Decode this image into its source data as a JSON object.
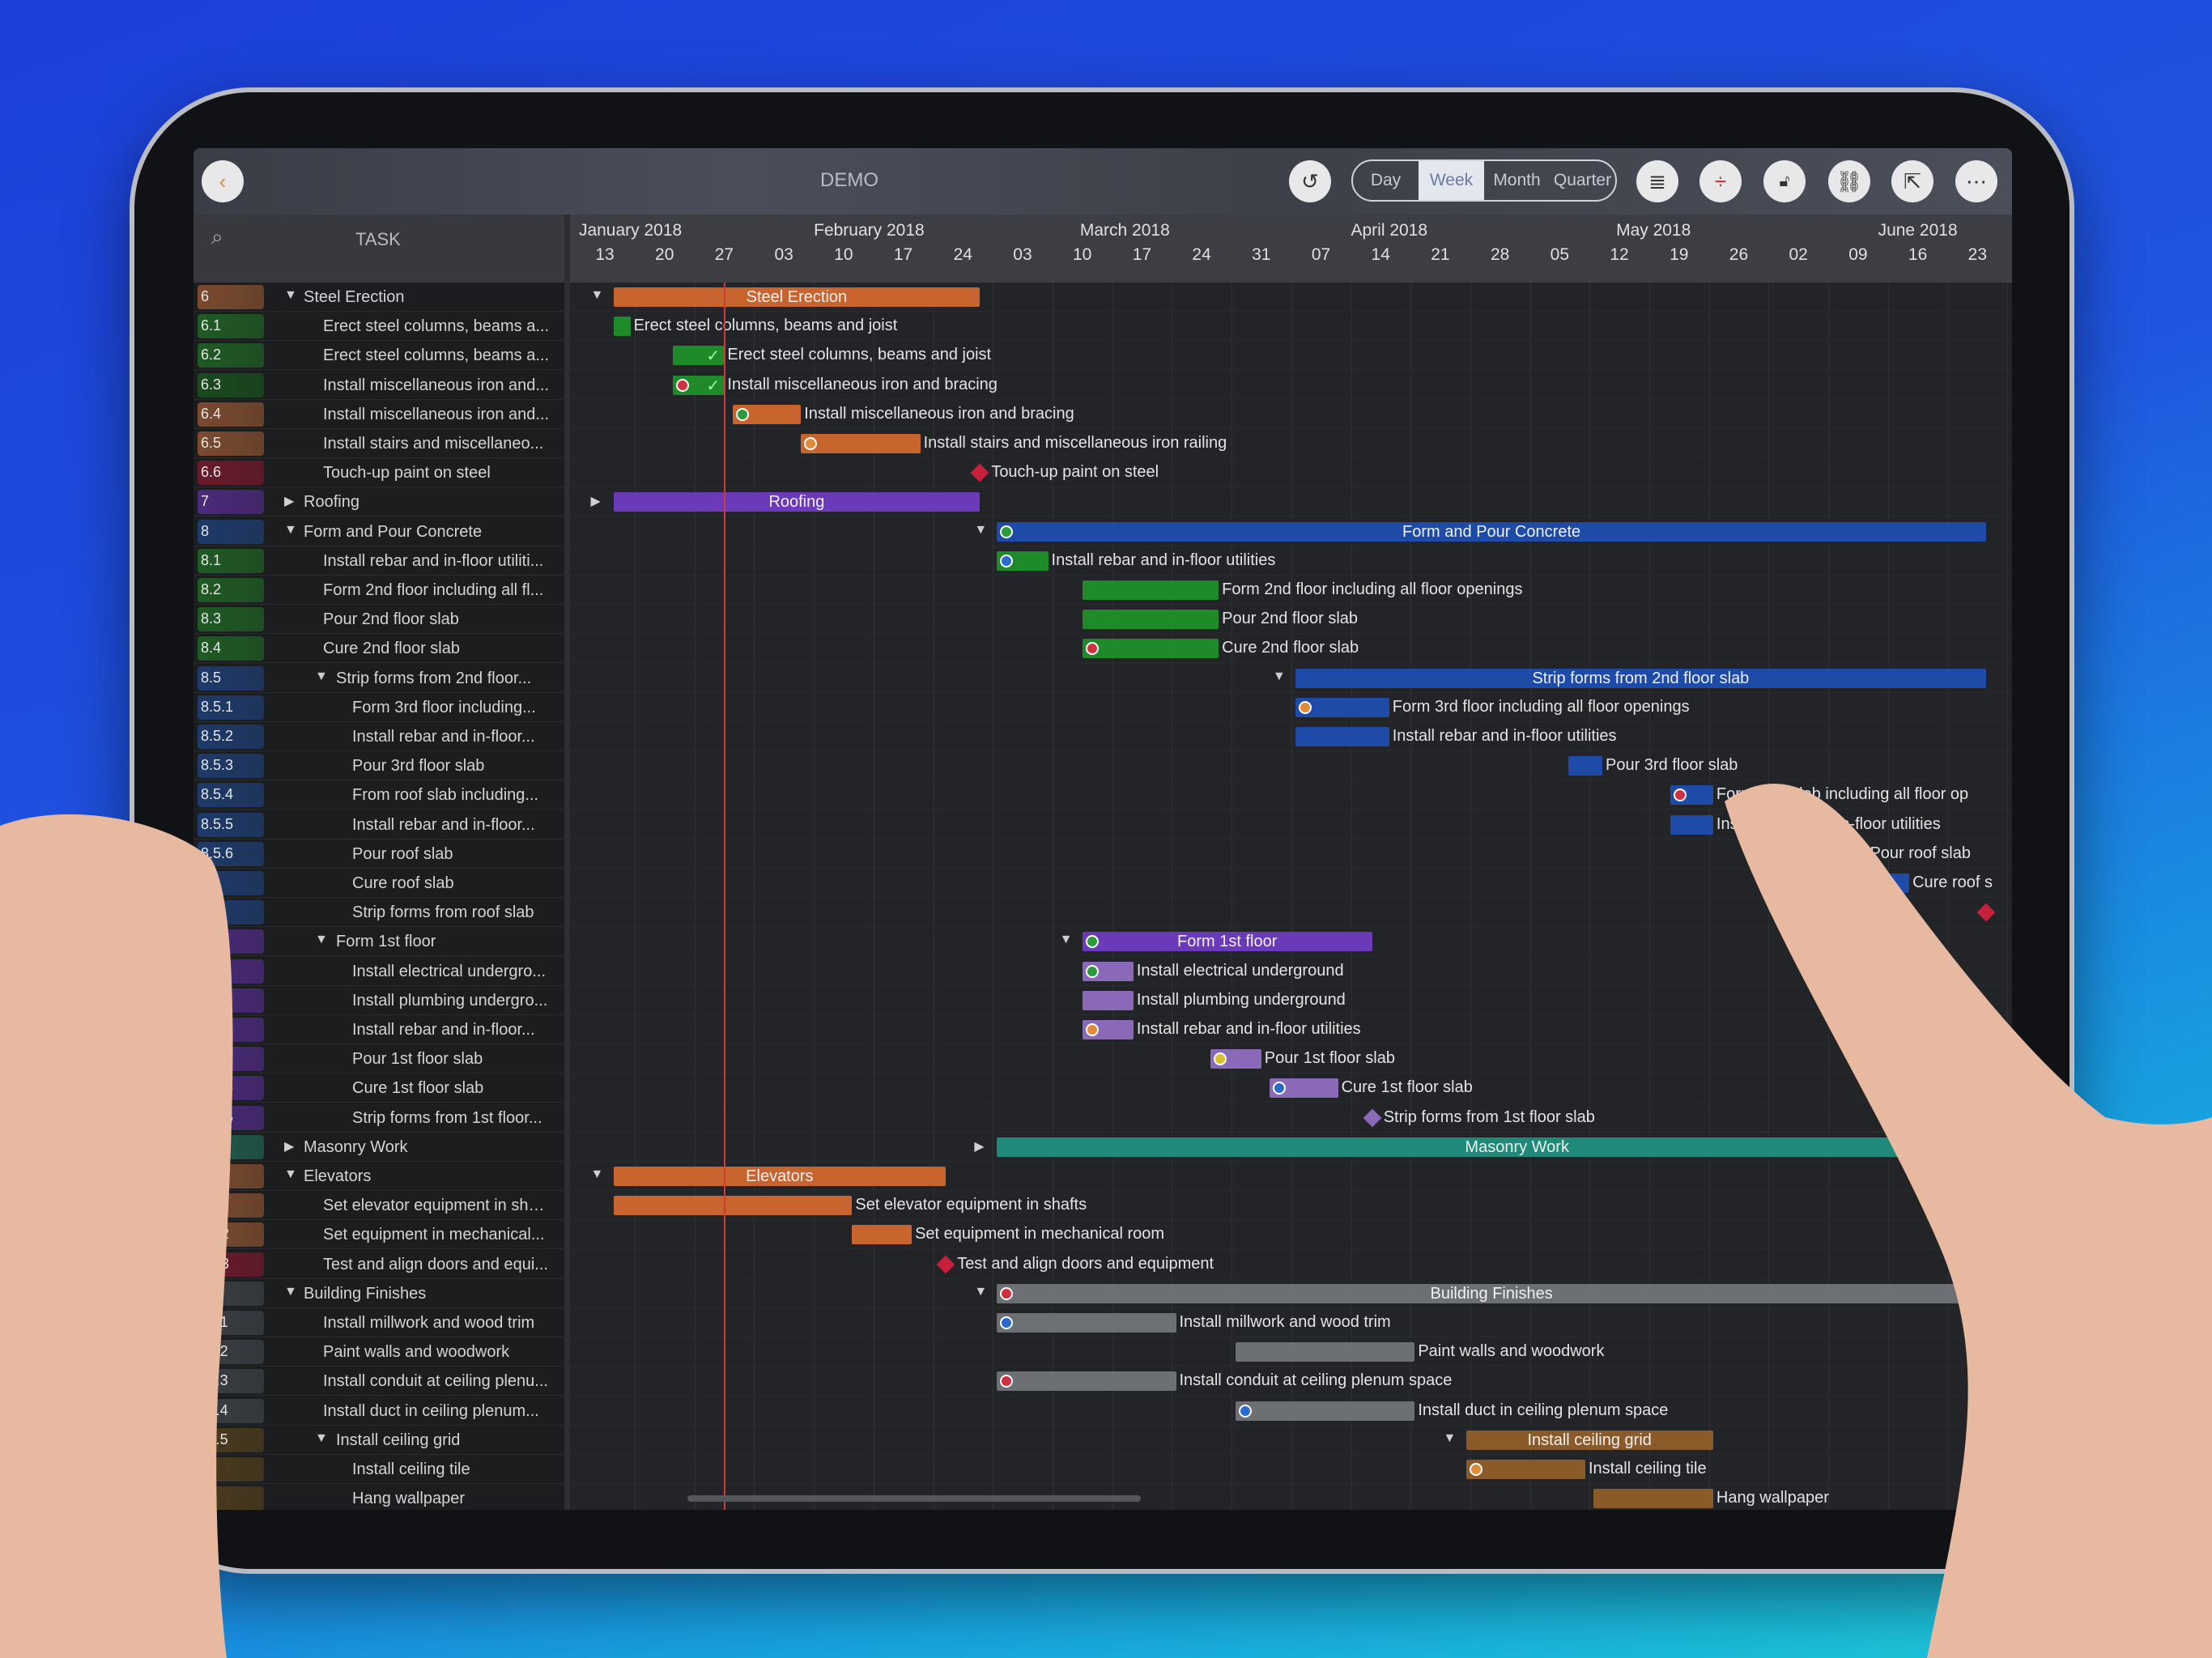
{
  "toolbar": {
    "title": "DEMO",
    "views": [
      "Day",
      "Week",
      "Month",
      "Quarter"
    ],
    "active_view": "Week",
    "icons": [
      "back-icon",
      "undo-icon",
      "list-indent-icon",
      "row-height-icon",
      "lock-icon",
      "link-icon",
      "export-icon",
      "more-icon"
    ]
  },
  "task_header": {
    "label": "TASK"
  },
  "timeline": {
    "months": [
      "January 2018",
      "February 2018",
      "March 2018",
      "April 2018",
      "May 2018",
      "June 2018"
    ],
    "weeks": [
      "13",
      "20",
      "27",
      "03",
      "10",
      "17",
      "24",
      "03",
      "10",
      "17",
      "24",
      "31",
      "07",
      "14",
      "21",
      "28",
      "05",
      "12",
      "19",
      "26",
      "02",
      "09",
      "16",
      "23"
    ],
    "first_week": "2018-01-13",
    "today": "2018-01-27"
  },
  "colors": {
    "orange": "#c8642e",
    "green": "#1f8a2a",
    "crimson": "#c8203c",
    "purple": "#6a3ab8",
    "blue": "#1e4aa8",
    "teal": "#1f8a7a",
    "gray": "#6c6f74",
    "brown": "#8a5a28",
    "lavender": "#8a6ab8"
  },
  "tasks": [
    {
      "id": "6",
      "name": "Steel Erection",
      "level": 0,
      "group": true,
      "open": true,
      "chip": "#7a4a2e",
      "color": "orange",
      "start": "2018-01-14",
      "end": "2018-02-26",
      "bar_label": "Steel Erection"
    },
    {
      "id": "6.1",
      "name": "Erect steel columns, beams a...",
      "level": 1,
      "chip": "#1f5a24",
      "color": "green",
      "start": "2018-01-14",
      "end": "2018-01-16",
      "bar_label": "Erect steel columns, beams and joist"
    },
    {
      "id": "6.2",
      "name": "Erect steel columns, beams a...",
      "level": 1,
      "chip": "#1f5a24",
      "color": "green",
      "start": "2018-01-21",
      "end": "2018-01-27",
      "bar_label": "Erect steel columns, beams and joist",
      "done": true
    },
    {
      "id": "6.3",
      "name": "Install miscellaneous iron and...",
      "level": 1,
      "chip": "#1a4a1e",
      "color": "green",
      "start": "2018-01-21",
      "end": "2018-01-27",
      "bar_label": "Install miscellaneous iron and bracing",
      "done": true,
      "icon": "crimson"
    },
    {
      "id": "6.4",
      "name": "Install miscellaneous iron and...",
      "level": 1,
      "chip": "#7a4a2e",
      "color": "orange",
      "start": "2018-01-28",
      "end": "2018-02-05",
      "bar_label": "Install miscellaneous iron and bracing",
      "icon": "green"
    },
    {
      "id": "6.5",
      "name": "Install stairs and miscellaneo...",
      "level": 1,
      "chip": "#7a4a2e",
      "color": "orange",
      "start": "2018-02-05",
      "end": "2018-02-19",
      "bar_label": "Install stairs and miscellaneous iron railing",
      "icon": "orange"
    },
    {
      "id": "6.6",
      "name": "Touch-up paint on steel",
      "level": 1,
      "chip": "#6a1a2a",
      "milestone": true,
      "color": "crimson",
      "start": "2018-02-26",
      "end": "2018-02-26",
      "bar_label": "Touch-up paint on steel"
    },
    {
      "id": "7",
      "name": "Roofing",
      "level": 0,
      "group": true,
      "open": false,
      "chip": "#4a2a7a",
      "color": "purple",
      "start": "2018-01-14",
      "end": "2018-02-26",
      "bar_label": "Roofing"
    },
    {
      "id": "8",
      "name": "Form and Pour Concrete",
      "level": 0,
      "group": true,
      "open": true,
      "chip": "#1e3a6a",
      "color": "blue",
      "start": "2018-02-28",
      "end": "2018-06-24",
      "bar_label": "Form and Pour Concrete",
      "icon": "green"
    },
    {
      "id": "8.1",
      "name": "Install rebar and in-floor utiliti...",
      "level": 1,
      "chip": "#1f5a24",
      "color": "green",
      "start": "2018-02-28",
      "end": "2018-03-06",
      "bar_label": "Install rebar and in-floor utilities",
      "icon": "blue"
    },
    {
      "id": "8.2",
      "name": "Form 2nd floor including all fl...",
      "level": 1,
      "chip": "#1f5a24",
      "color": "green",
      "start": "2018-03-10",
      "end": "2018-03-26",
      "bar_label": "Form 2nd floor including all floor openings"
    },
    {
      "id": "8.3",
      "name": "Pour 2nd floor slab",
      "level": 1,
      "chip": "#1f5a24",
      "color": "green",
      "start": "2018-03-10",
      "end": "2018-03-26",
      "bar_label": "Pour 2nd floor slab"
    },
    {
      "id": "8.4",
      "name": "Cure 2nd floor slab",
      "level": 1,
      "chip": "#1f5a24",
      "color": "green",
      "start": "2018-03-10",
      "end": "2018-03-26",
      "bar_label": "Cure 2nd floor slab",
      "icon": "crimson"
    },
    {
      "id": "8.5",
      "name": "Strip forms from 2nd floor...",
      "level": 1,
      "group": true,
      "open": true,
      "chip": "#1e3a6a",
      "color": "blue",
      "start": "2018-04-04",
      "end": "2018-06-24",
      "bar_label": "Strip forms from 2nd floor slab"
    },
    {
      "id": "8.5.1",
      "name": "Form 3rd floor including...",
      "level": 2,
      "chip": "#1e3a6a",
      "color": "blue",
      "start": "2018-04-04",
      "end": "2018-04-15",
      "bar_label": "Form 3rd floor including all floor openings",
      "icon": "orange"
    },
    {
      "id": "8.5.2",
      "name": "Install rebar and in-floor...",
      "level": 2,
      "chip": "#1e3a6a",
      "color": "blue",
      "start": "2018-04-04",
      "end": "2018-04-15",
      "bar_label": "Install rebar and in-floor utilities"
    },
    {
      "id": "8.5.3",
      "name": "Pour 3rd floor slab",
      "level": 2,
      "chip": "#1e3a6a",
      "color": "blue",
      "start": "2018-05-06",
      "end": "2018-05-10",
      "bar_label": "Pour 3rd floor slab"
    },
    {
      "id": "8.5.4",
      "name": "From roof slab including...",
      "level": 2,
      "chip": "#1e3a6a",
      "color": "blue",
      "start": "2018-05-18",
      "end": "2018-05-23",
      "bar_label": "Form roof slab including all floor op",
      "icon": "crimson"
    },
    {
      "id": "8.5.5",
      "name": "Install rebar and in-floor...",
      "level": 2,
      "chip": "#1e3a6a",
      "color": "blue",
      "start": "2018-05-18",
      "end": "2018-05-23",
      "bar_label": "Install rebar and in-floor utilities"
    },
    {
      "id": "8.5.6",
      "name": "Pour roof slab",
      "level": 2,
      "chip": "#1e3a6a",
      "color": "blue",
      "start": "2018-06-01",
      "end": "2018-06-10",
      "bar_label": "Pour roof slab"
    },
    {
      "id": "",
      "name": "Cure roof slab",
      "level": 2,
      "chip": "#1e3a6a",
      "color": "blue",
      "start": "2018-06-11",
      "end": "2018-06-15",
      "bar_label": "Cure roof s"
    },
    {
      "id": "",
      "name": "Strip forms from roof slab",
      "level": 2,
      "chip": "#1e3a6a",
      "milestone": true,
      "color": "crimson",
      "start": "2018-06-24",
      "end": "2018-06-24",
      "bar_label": ""
    },
    {
      "id": "",
      "name": "Form 1st floor",
      "level": 1,
      "group": true,
      "open": true,
      "chip": "#4a2a7a",
      "color": "purple",
      "start": "2018-03-10",
      "end": "2018-04-13",
      "bar_label": "Form 1st floor",
      "icon": "green"
    },
    {
      "id": "",
      "name": "Install electrical undergro...",
      "level": 2,
      "chip": "#4a2a7a",
      "color": "lavender",
      "start": "2018-03-10",
      "end": "2018-03-16",
      "bar_label": "Install electrical underground",
      "icon": "green"
    },
    {
      "id": "",
      "name": "Install plumbing undergro...",
      "level": 2,
      "chip": "#4a2a7a",
      "color": "lavender",
      "start": "2018-03-10",
      "end": "2018-03-16",
      "bar_label": "Install plumbing underground"
    },
    {
      "id": "",
      "name": "Install rebar and in-floor...",
      "level": 2,
      "chip": "#4a2a7a",
      "color": "lavender",
      "start": "2018-03-10",
      "end": "2018-03-16",
      "bar_label": "Install rebar and in-floor utilities",
      "icon": "orange"
    },
    {
      "id": "",
      "name": "Pour 1st floor slab",
      "level": 2,
      "chip": "#4a2a7a",
      "color": "lavender",
      "start": "2018-03-25",
      "end": "2018-03-31",
      "bar_label": "Pour 1st floor slab",
      "icon": "yellow"
    },
    {
      "id": "8.6.5",
      "name": "Cure 1st floor slab",
      "level": 2,
      "chip": "#4a2a7a",
      "color": "lavender",
      "start": "2018-04-01",
      "end": "2018-04-09",
      "bar_label": "Cure 1st floor slab",
      "icon": "blue"
    },
    {
      "id": "8.6.6",
      "name": "Strip forms from 1st floor...",
      "level": 2,
      "chip": "#4a2a7a",
      "milestone": true,
      "color": "lavender",
      "start": "2018-04-13",
      "end": "2018-04-13",
      "bar_label": "Strip forms from 1st floor slab"
    },
    {
      "id": "9",
      "name": "Masonry Work",
      "level": 0,
      "group": true,
      "open": false,
      "chip": "#1f5a4a",
      "color": "teal",
      "start": "2018-02-28",
      "end": "2018-06-30",
      "bar_label": "Masonry Work"
    },
    {
      "id": "10",
      "name": "Elevators",
      "level": 0,
      "group": true,
      "open": true,
      "chip": "#7a4a2e",
      "color": "orange",
      "start": "2018-01-14",
      "end": "2018-02-22",
      "bar_label": "Elevators"
    },
    {
      "id": "10.1",
      "name": "Set elevator equipment in sha...",
      "level": 1,
      "chip": "#7a4a2e",
      "color": "orange",
      "start": "2018-01-14",
      "end": "2018-02-11",
      "bar_label": "Set elevator equipment in shafts"
    },
    {
      "id": "10.2",
      "name": "Set equipment in mechanical...",
      "level": 1,
      "chip": "#7a4a2e",
      "color": "orange",
      "start": "2018-02-11",
      "end": "2018-02-18",
      "bar_label": "Set equipment in mechanical room"
    },
    {
      "id": "10.3",
      "name": "Test and align doors and equi...",
      "level": 1,
      "chip": "#6a1a2a",
      "milestone": true,
      "color": "crimson",
      "start": "2018-02-22",
      "end": "2018-02-22",
      "bar_label": "Test and align doors and equipment"
    },
    {
      "id": "11",
      "name": "Building Finishes",
      "level": 0,
      "group": true,
      "open": true,
      "chip": "#3a3d42",
      "color": "gray",
      "start": "2018-02-28",
      "end": "2018-06-24",
      "bar_label": "Building Finishes",
      "icon": "crimson"
    },
    {
      "id": "11.1",
      "name": "Install millwork and wood trim",
      "level": 1,
      "chip": "#3a3d42",
      "color": "gray",
      "start": "2018-02-28",
      "end": "2018-03-21",
      "bar_label": "Install millwork and wood trim",
      "icon": "blue"
    },
    {
      "id": "11.2",
      "name": "Paint walls and woodwork",
      "level": 1,
      "chip": "#3a3d42",
      "color": "gray",
      "start": "2018-03-28",
      "end": "2018-04-18",
      "bar_label": "Paint walls and woodwork"
    },
    {
      "id": "11.3",
      "name": "Install conduit at ceiling plenu...",
      "level": 1,
      "chip": "#3a3d42",
      "color": "gray",
      "start": "2018-02-28",
      "end": "2018-03-21",
      "bar_label": "Install conduit at ceiling plenum space",
      "icon": "crimson"
    },
    {
      "id": "11.4",
      "name": "Install duct in ceiling plenum...",
      "level": 1,
      "chip": "#3a3d42",
      "color": "gray",
      "start": "2018-03-28",
      "end": "2018-04-18",
      "bar_label": "Install duct in ceiling plenum space",
      "icon": "blue"
    },
    {
      "id": "11.5",
      "name": "Install ceiling grid",
      "level": 1,
      "group": true,
      "open": true,
      "chip": "#4a3a1e",
      "color": "brown",
      "start": "2018-04-24",
      "end": "2018-05-23",
      "bar_label": "Install ceiling grid"
    },
    {
      "id": "",
      "name": "Install ceiling tile",
      "level": 2,
      "chip": "#4a3a1e",
      "color": "brown",
      "start": "2018-04-24",
      "end": "2018-05-08",
      "bar_label": "Install ceiling tile",
      "icon": "orange"
    },
    {
      "id": "",
      "name": "Hang wallpaper",
      "level": 2,
      "chip": "#4a3a1e",
      "color": "brown",
      "start": "2018-05-09",
      "end": "2018-05-23",
      "bar_label": "Hang wallpaper"
    }
  ]
}
